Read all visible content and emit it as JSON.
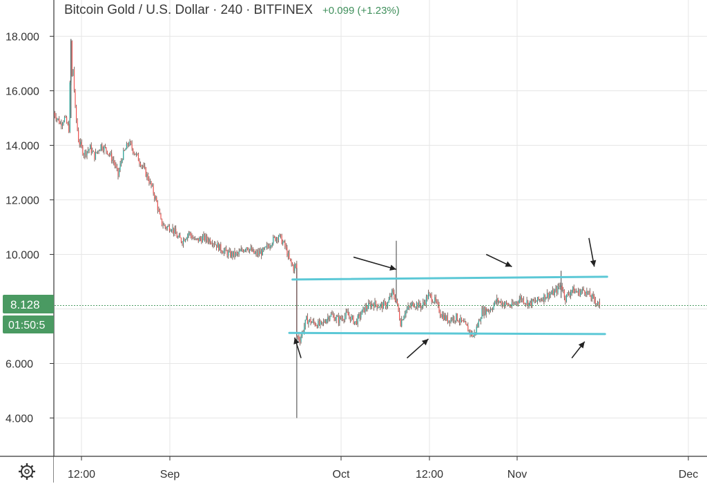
{
  "header": {
    "symbol": "Bitcoin Gold / U.S. Dollar",
    "interval": "240",
    "exchange": "BITFINEX",
    "sep": "·",
    "change": "+0.099 (+1.23%)"
  },
  "price_axis": {
    "ticks": [
      "18.000",
      "16.000",
      "14.000",
      "12.000",
      "10.000",
      "6.000",
      "4.000"
    ],
    "last_price": "8.128",
    "countdown": "01:50:5"
  },
  "time_axis": {
    "ticks": [
      "12:00",
      "Sep",
      "Oct",
      "12:00",
      "Nov",
      "Dec"
    ]
  },
  "icons": {
    "settings": "gear-icon"
  },
  "colors": {
    "up": "#26a69a",
    "down": "#ef5350",
    "wick": "#5d4037",
    "channel": "#5bc8d6",
    "price_label_bg": "#4a9a62",
    "change_text": "#3f8f5b",
    "header_text": "#3a3a3a"
  },
  "chart_data": {
    "type": "candlestick",
    "title": "Bitcoin Gold / U.S. Dollar · 240 · BITFINEX",
    "ylim": [
      3.2,
      19.0
    ],
    "y_ticks": [
      4,
      6,
      10,
      12,
      14,
      16,
      18
    ],
    "x_ticks": [
      "12:00",
      "Sep",
      "Oct",
      "12:00",
      "Nov",
      "Dec"
    ],
    "last_price": 8.128,
    "grid": true,
    "price_path": [
      [
        0,
        15.2
      ],
      [
        6,
        14.8
      ],
      [
        10,
        15.0
      ],
      [
        14,
        14.6
      ],
      [
        16,
        17.8
      ],
      [
        17,
        16.5
      ],
      [
        18,
        16.8
      ],
      [
        20,
        15.3
      ],
      [
        23,
        14.2
      ],
      [
        28,
        13.7
      ],
      [
        34,
        13.9
      ],
      [
        38,
        13.6
      ],
      [
        44,
        14.0
      ],
      [
        50,
        13.8
      ],
      [
        56,
        13.4
      ],
      [
        60,
        12.9
      ],
      [
        64,
        13.6
      ],
      [
        70,
        14.1
      ],
      [
        76,
        13.7
      ],
      [
        82,
        13.3
      ],
      [
        88,
        12.8
      ],
      [
        92,
        12.4
      ],
      [
        96,
        11.9
      ],
      [
        100,
        11.2
      ],
      [
        104,
        11.0
      ],
      [
        110,
        11.0
      ],
      [
        116,
        10.6
      ],
      [
        120,
        10.5
      ],
      [
        126,
        10.8
      ],
      [
        132,
        10.5
      ],
      [
        140,
        10.6
      ],
      [
        148,
        10.5
      ],
      [
        156,
        10.2
      ],
      [
        164,
        10.0
      ],
      [
        172,
        10.0
      ],
      [
        180,
        10.3
      ],
      [
        188,
        10.0
      ],
      [
        196,
        10.1
      ],
      [
        204,
        10.5
      ],
      [
        210,
        10.7
      ],
      [
        216,
        10.3
      ],
      [
        220,
        9.8
      ],
      [
        224,
        9.5
      ],
      [
        226,
        9.6
      ],
      [
        227,
        7.0
      ],
      [
        230,
        6.9
      ],
      [
        236,
        7.6
      ],
      [
        242,
        7.5
      ],
      [
        250,
        7.4
      ],
      [
        258,
        7.8
      ],
      [
        266,
        7.6
      ],
      [
        274,
        7.8
      ],
      [
        282,
        7.5
      ],
      [
        290,
        8.0
      ],
      [
        298,
        8.2
      ],
      [
        306,
        8.1
      ],
      [
        312,
        8.2
      ],
      [
        316,
        8.6
      ],
      [
        320,
        8.3
      ],
      [
        324,
        7.5
      ],
      [
        328,
        7.9
      ],
      [
        336,
        8.2
      ],
      [
        344,
        8.1
      ],
      [
        350,
        8.5
      ],
      [
        356,
        8.3
      ],
      [
        362,
        7.8
      ],
      [
        368,
        7.6
      ],
      [
        376,
        7.7
      ],
      [
        384,
        7.4
      ],
      [
        392,
        7.0
      ],
      [
        396,
        7.4
      ],
      [
        400,
        7.9
      ],
      [
        408,
        8.0
      ],
      [
        414,
        8.3
      ],
      [
        420,
        8.2
      ],
      [
        428,
        8.1
      ],
      [
        436,
        8.4
      ],
      [
        444,
        8.2
      ],
      [
        452,
        8.3
      ],
      [
        460,
        8.5
      ],
      [
        468,
        8.6
      ],
      [
        474,
        8.9
      ],
      [
        478,
        8.4
      ],
      [
        484,
        8.7
      ],
      [
        490,
        8.6
      ],
      [
        496,
        8.7
      ],
      [
        500,
        8.5
      ],
      [
        506,
        8.3
      ],
      [
        510,
        8.128
      ]
    ],
    "spikes": [
      {
        "x": 227,
        "high": 9.5,
        "low": 4.0
      },
      {
        "x": 320,
        "high": 10.5,
        "low": 8.2
      },
      {
        "x": 16,
        "high": 17.9,
        "low": 15.0
      },
      {
        "x": 474,
        "high": 9.4,
        "low": 8.4
      }
    ],
    "channel_lines": [
      {
        "name": "resistance",
        "from": [
          223,
          9.08
        ],
        "to": [
          517,
          9.18
        ]
      },
      {
        "name": "support",
        "from": [
          220,
          7.12
        ],
        "to": [
          515,
          7.08
        ]
      }
    ],
    "arrows": [
      {
        "from": [
          280,
          9.9
        ],
        "to": [
          320,
          9.45
        ]
      },
      {
        "from": [
          404,
          10.0
        ],
        "to": [
          428,
          9.55
        ]
      },
      {
        "from": [
          500,
          10.6
        ],
        "to": [
          505,
          9.55
        ]
      },
      {
        "from": [
          231,
          6.2
        ],
        "to": [
          225,
          6.95
        ]
      },
      {
        "from": [
          330,
          6.2
        ],
        "to": [
          350,
          6.9
        ]
      },
      {
        "from": [
          484,
          6.2
        ],
        "to": [
          496,
          6.8
        ]
      }
    ]
  }
}
